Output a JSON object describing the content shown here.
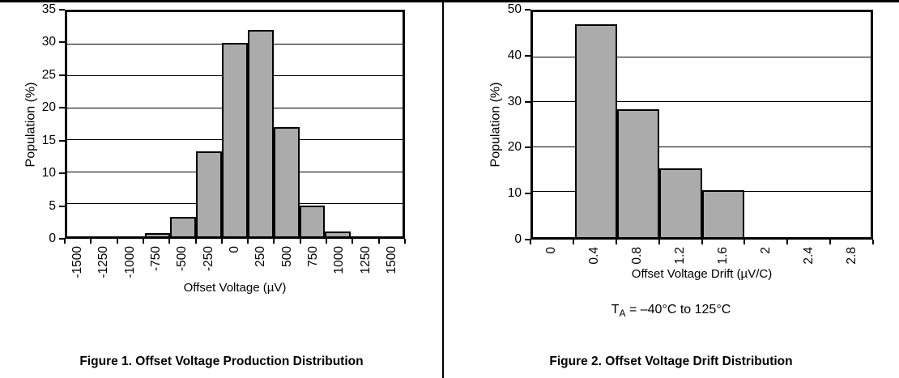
{
  "page": {
    "background": "#ffffff",
    "rule_color": "#000000"
  },
  "chart_data": [
    {
      "type": "bar",
      "caption": "Figure 1. Offset Voltage Production Distribution",
      "xlabel": "Offset Voltage (µV)",
      "ylabel": "Population (%)",
      "ylim": [
        0,
        35
      ],
      "yticks": [
        0,
        5,
        10,
        15,
        20,
        25,
        30,
        35
      ],
      "grid": true,
      "legend": "none",
      "categories": [
        "-1500",
        "-1250",
        "-1000",
        "-750",
        "-500",
        "-250",
        "0",
        "250",
        "500",
        "750",
        "1000",
        "1250",
        "1500"
      ],
      "values": [
        0,
        0,
        0,
        0.2,
        2.8,
        13,
        30,
        32,
        16.8,
        4.5,
        0.5,
        0,
        0
      ],
      "bar_color": "#ABABAB",
      "bar_border_color": "#000000"
    },
    {
      "type": "bar",
      "caption": "Figure 2. Offset Voltage Drift Distribution",
      "xlabel": "Offset Voltage Drift (µV/C)",
      "ylabel": "Population (%)",
      "ylim": [
        0,
        50
      ],
      "yticks": [
        0,
        10,
        20,
        30,
        40,
        50
      ],
      "grid": true,
      "legend": "none",
      "categories": [
        "0",
        "0.4",
        "0.8",
        "1.2",
        "1.6",
        "2",
        "2.4",
        "2.8"
      ],
      "values": [
        0,
        47,
        28,
        15,
        10,
        0,
        0,
        0
      ],
      "annotation": {
        "prefix": "T",
        "sub": "A",
        "suffix": " = –40°C to 125°C"
      },
      "bar_color": "#ABABAB",
      "bar_border_color": "#000000"
    }
  ]
}
